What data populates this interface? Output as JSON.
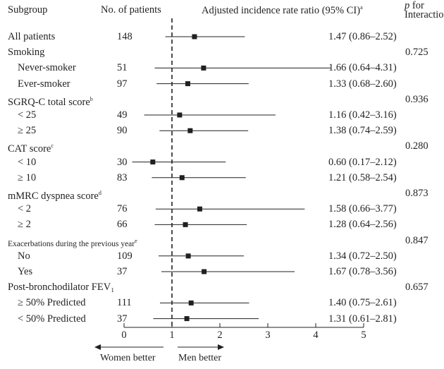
{
  "header": {
    "subgroup": "Subgroup",
    "patients": "No. of patients",
    "ratio": "Adjusted incidence rate ratio (95% CI)",
    "ratio_sup": "a",
    "p_italic": "p",
    "p_for": " for",
    "interaction": "Interaction"
  },
  "footer": {
    "left": "Women better",
    "right": "Men better"
  },
  "colors": {
    "ink": "#231f20"
  },
  "chart_data": {
    "type": "forest",
    "reference_line": 1,
    "xlim": [
      0,
      5
    ],
    "x_ticks": [
      "0",
      "1",
      "2",
      "3",
      "4",
      "5"
    ],
    "rows": [
      {
        "label": "All patients",
        "sup": "",
        "n": "148",
        "ci": "1.47 (0.86–2.52)",
        "est": 1.47,
        "lo": 0.86,
        "hi": 2.52,
        "p": "",
        "indent": false,
        "small": false
      },
      {
        "label": "Smoking",
        "sup": "",
        "n": "",
        "ci": "",
        "p": "0.725",
        "indent": false,
        "small": false
      },
      {
        "label": "Never-smoker",
        "sup": "",
        "n": "51",
        "ci": "1.66 (0.64–4.31)",
        "est": 1.66,
        "lo": 0.64,
        "hi": 4.31,
        "p": "",
        "indent": true,
        "small": false
      },
      {
        "label": "Ever-smoker",
        "sup": "",
        "n": "97",
        "ci": "1.33 (0.68–2.60)",
        "est": 1.33,
        "lo": 0.68,
        "hi": 2.6,
        "p": "",
        "indent": true,
        "small": false
      },
      {
        "label": "SGRQ-C total score",
        "sup": "b",
        "n": "",
        "ci": "",
        "p": "0.936",
        "indent": false,
        "small": false
      },
      {
        "label": "< 25",
        "sup": "",
        "n": "49",
        "ci": "1.16 (0.42–3.16)",
        "est": 1.16,
        "lo": 0.42,
        "hi": 3.16,
        "p": "",
        "indent": true,
        "small": false
      },
      {
        "label": "≥ 25",
        "sup": "",
        "n": "90",
        "ci": "1.38 (0.74–2.59)",
        "est": 1.38,
        "lo": 0.74,
        "hi": 2.59,
        "p": "",
        "indent": true,
        "small": false
      },
      {
        "label": "CAT score",
        "sup": "c",
        "n": "",
        "ci": "",
        "p": "0.280",
        "indent": false,
        "small": false
      },
      {
        "label": "< 10",
        "sup": "",
        "n": "30",
        "ci": "0.60 (0.17–2.12)",
        "est": 0.6,
        "lo": 0.17,
        "hi": 2.12,
        "p": "",
        "indent": true,
        "small": false
      },
      {
        "label": "≥ 10",
        "sup": "",
        "n": "83",
        "ci": "1.21 (0.58–2.54)",
        "est": 1.21,
        "lo": 0.58,
        "hi": 2.54,
        "p": "",
        "indent": true,
        "small": false
      },
      {
        "label": "mMRC dyspnea score",
        "sup": "d",
        "n": "",
        "ci": "",
        "p": "0.873",
        "indent": false,
        "small": false
      },
      {
        "label": "< 2",
        "sup": "",
        "n": "76",
        "ci": "1.58 (0.66–3.77)",
        "est": 1.58,
        "lo": 0.66,
        "hi": 3.77,
        "p": "",
        "indent": true,
        "small": false
      },
      {
        "label": "≥ 2",
        "sup": "",
        "n": "66",
        "ci": "1.28 (0.64–2.56)",
        "est": 1.28,
        "lo": 0.64,
        "hi": 2.56,
        "p": "",
        "indent": true,
        "small": false
      },
      {
        "label": "Exacerbations during the previous year",
        "sup": "e",
        "n": "",
        "ci": "",
        "p": "0.847",
        "indent": false,
        "small": true
      },
      {
        "label": "No",
        "sup": "",
        "n": "109",
        "ci": "1.34 (0.72–2.50)",
        "est": 1.34,
        "lo": 0.72,
        "hi": 2.5,
        "p": "",
        "indent": true,
        "small": false
      },
      {
        "label": "Yes",
        "sup": "",
        "n": "37",
        "ci": "1.67 (0.78–3.56)",
        "est": 1.67,
        "lo": 0.78,
        "hi": 3.56,
        "p": "",
        "indent": true,
        "small": false
      },
      {
        "label": "Post-bronchodilator FEV₁",
        "sup": "",
        "n": "",
        "ci": "",
        "p": "0.657",
        "indent": false,
        "small": false
      },
      {
        "label": "≥ 50% Predicted",
        "sup": "",
        "n": "111",
        "ci": "1.40 (0.75–2.61)",
        "est": 1.4,
        "lo": 0.75,
        "hi": 2.61,
        "p": "",
        "indent": true,
        "small": false
      },
      {
        "label": "< 50% Predicted",
        "sup": "",
        "n": "37",
        "ci": "1.31 (0.61–2.81)",
        "est": 1.31,
        "lo": 0.61,
        "hi": 2.81,
        "p": "",
        "indent": true,
        "small": false
      }
    ]
  }
}
